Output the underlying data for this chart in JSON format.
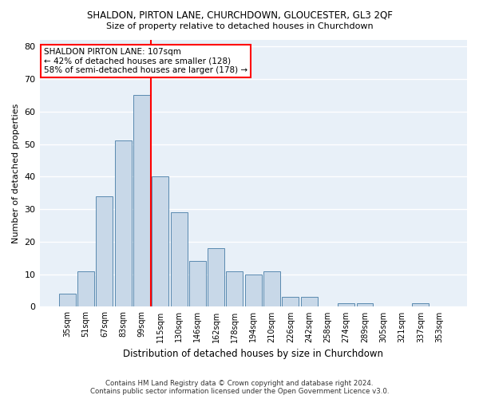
{
  "title": "SHALDON, PIRTON LANE, CHURCHDOWN, GLOUCESTER, GL3 2QF",
  "subtitle": "Size of property relative to detached houses in Churchdown",
  "xlabel": "Distribution of detached houses by size in Churchdown",
  "ylabel": "Number of detached properties",
  "bar_color": "#c8d8e8",
  "bar_edge_color": "#5a8ab0",
  "categories": [
    "35sqm",
    "51sqm",
    "67sqm",
    "83sqm",
    "99sqm",
    "115sqm",
    "130sqm",
    "146sqm",
    "162sqm",
    "178sqm",
    "194sqm",
    "210sqm",
    "226sqm",
    "242sqm",
    "258sqm",
    "274sqm",
    "289sqm",
    "305sqm",
    "321sqm",
    "337sqm",
    "353sqm"
  ],
  "values": [
    4,
    11,
    34,
    51,
    65,
    40,
    29,
    14,
    18,
    11,
    10,
    11,
    3,
    3,
    0,
    1,
    1,
    0,
    0,
    1,
    0
  ],
  "vline_x": 4.5,
  "vline_color": "red",
  "annotation_text": "SHALDON PIRTON LANE: 107sqm\n← 42% of detached houses are smaller (128)\n58% of semi-detached houses are larger (178) →",
  "annotation_box_color": "white",
  "annotation_box_edge_color": "red",
  "ylim": [
    0,
    82
  ],
  "yticks": [
    0,
    10,
    20,
    30,
    40,
    50,
    60,
    70,
    80
  ],
  "footer_line1": "Contains HM Land Registry data © Crown copyright and database right 2024.",
  "footer_line2": "Contains public sector information licensed under the Open Government Licence v3.0.",
  "background_color": "#e8f0f8",
  "grid_color": "white"
}
